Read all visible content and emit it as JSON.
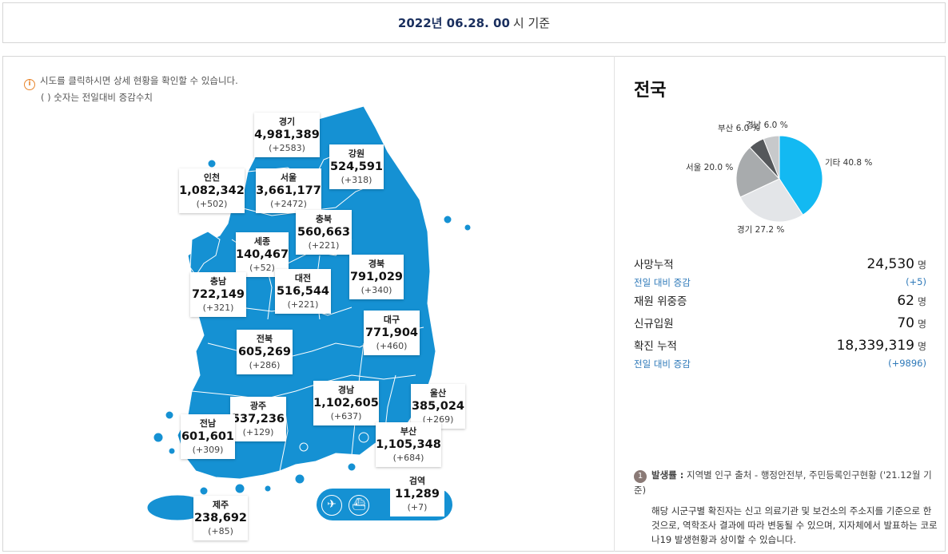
{
  "header": {
    "date_bold": "2022년 06.28. 00",
    "date_rest": "시 기준"
  },
  "notice": {
    "line1": "시도를 클릭하시면 상세 현황을 확인할 수 있습니다.",
    "line2": "( ) 숫자는 전일대비 증감수치"
  },
  "regions": [
    {
      "name": "경기",
      "value": "4,981,389",
      "diff": "(+2583)"
    },
    {
      "name": "강원",
      "value": "524,591",
      "diff": "(+318)"
    },
    {
      "name": "인천",
      "value": "1,082,342",
      "diff": "(+502)"
    },
    {
      "name": "서울",
      "value": "3,661,177",
      "diff": "(+2472)"
    },
    {
      "name": "충북",
      "value": "560,663",
      "diff": "(+221)"
    },
    {
      "name": "세종",
      "value": "140,467",
      "diff": "(+52)"
    },
    {
      "name": "경북",
      "value": "791,029",
      "diff": "(+340)"
    },
    {
      "name": "충남",
      "value": "722,149",
      "diff": "(+321)"
    },
    {
      "name": "대전",
      "value": "516,544",
      "diff": "(+221)"
    },
    {
      "name": "대구",
      "value": "771,904",
      "diff": "(+460)"
    },
    {
      "name": "전북",
      "value": "605,269",
      "diff": "(+286)"
    },
    {
      "name": "경남",
      "value": "1,102,605",
      "diff": "(+637)"
    },
    {
      "name": "울산",
      "value": "385,024",
      "diff": "(+269)"
    },
    {
      "name": "광주",
      "value": "537,236",
      "diff": "(+129)"
    },
    {
      "name": "전남",
      "value": "601,601",
      "diff": "(+309)"
    },
    {
      "name": "부산",
      "value": "1,105,348",
      "diff": "(+684)"
    },
    {
      "name": "검역",
      "value": "11,289",
      "diff": "(+7)"
    },
    {
      "name": "제주",
      "value": "238,692",
      "diff": "(+85)"
    }
  ],
  "airport_icons": [
    "airplane-icon",
    "ship-icon"
  ],
  "side": {
    "title": "전국",
    "pie": [
      {
        "label": "기타 40.8 %",
        "pct": 40.8,
        "color": "#13b9f2"
      },
      {
        "label": "경기 27.2 %",
        "pct": 27.2,
        "color": "#e3e5e8"
      },
      {
        "label": "서울 20.0 %",
        "pct": 20.0,
        "color": "#a8abad"
      },
      {
        "label": "부산 6.0 %",
        "pct": 6.0,
        "color": "#55585b"
      },
      {
        "label": "경남 6.0 %",
        "pct": 6.0,
        "color": "#c7c9cb"
      }
    ],
    "deaths_label": "사망누적",
    "deaths_value": "24,530",
    "unit": "명",
    "deaths_diff_label": "전일 대비 증감",
    "deaths_diff": "(+5)",
    "severe_label": "재원 위중증",
    "severe_value": "62",
    "newadmit_label": "신규입원",
    "newadmit_value": "70",
    "confirmed_label": "확진 누적",
    "confirmed_value": "18,339,319",
    "confirmed_diff_label": "전일 대비 증감",
    "confirmed_diff": "(+9896)"
  },
  "footnote": {
    "num": "1",
    "title": "발생률 :",
    "title_rest": " 지역별 인구 출처 - 행정안전부, 주민등록인구현황 ('21.12월 기준)",
    "body": "해당 시군구별 확진자는 신고 의료기관 및 보건소의 주소지를 기준으로 한 것으로, 역학조사 결과에 따라 변동될 수 있으며, 지자체에서 발표하는 코로나19 발생현황과 상이할 수 있습니다."
  },
  "colors": {
    "map_fill": "#1591d3",
    "map_border": "#ffffff",
    "accent_text": "#2e79b9"
  }
}
